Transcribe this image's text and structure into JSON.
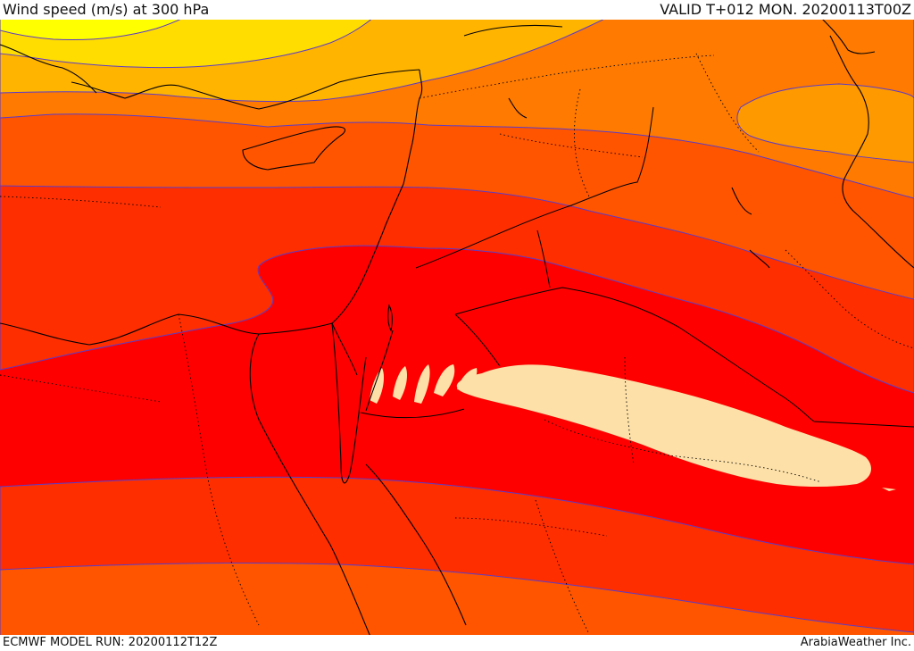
{
  "header": {
    "title": "Wind speed (m/s) at 300 hPa",
    "valid": "VALID T+012 MON. 20200113T00Z"
  },
  "footer": {
    "model_run": "ECMWF MODEL RUN: 20200112T12Z",
    "credit": "ArabiaWeather Inc."
  },
  "colors": {
    "band_yellow": "#ffff00",
    "band_gold": "#ffdd00",
    "band_amber": "#ffb400",
    "band_orange_light": "#ff9900",
    "band_orange": "#ff7a00",
    "band_orange_red": "#ff5500",
    "band_red_orange": "#ff2e00",
    "band_red": "#ff0000",
    "jet_core": "#fde0a8",
    "contour": "#5a3cc8",
    "coast": "#000000"
  }
}
